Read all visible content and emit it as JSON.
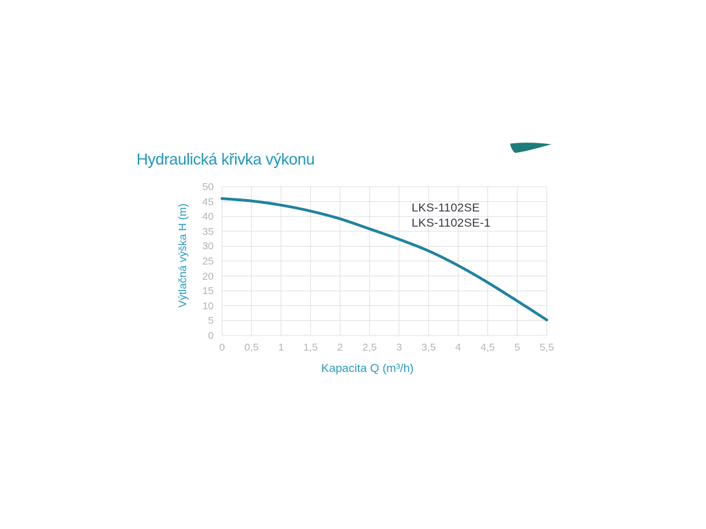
{
  "title": {
    "text": "Hydraulická křivka výkonu"
  },
  "logo": {
    "name": "logo-swoosh"
  },
  "legend": {
    "line1": "LKS-1102SE",
    "line2": "LKS-1102SE-1"
  },
  "axes": {
    "x_title": "Kapacita Q (m³/h)",
    "y_title": "Výtlačná výška H (m)"
  },
  "colors": {
    "background": "#ffffff",
    "title_blue": "#1e97c0",
    "axis_blue": "#2b9bc3",
    "tick_gray": "#b3b6b8",
    "legend_dark": "#35383e",
    "grid": "#e0e1e3",
    "curve": "#1e82a1",
    "swoosh": "#1d7b7b"
  },
  "chart_data": {
    "type": "line",
    "title": "Hydraulická křivka výkonu",
    "xlabel": "Kapacita Q (m³/h)",
    "ylabel": "Výtlačná výška H (m)",
    "xlim": [
      0,
      5.5
    ],
    "ylim": [
      0,
      50
    ],
    "grid": true,
    "legend_position": "inside-top-right",
    "x_ticks": [
      0,
      0.5,
      1,
      1.5,
      2,
      2.5,
      3,
      3.5,
      4,
      4.5,
      5,
      5.5
    ],
    "x_tick_labels": [
      "0",
      "0,5",
      "1",
      "1,5",
      "2",
      "2,5",
      "3",
      "3,5",
      "4",
      "4,5",
      "5",
      "5,5"
    ],
    "y_ticks": [
      0,
      5,
      10,
      15,
      20,
      25,
      30,
      35,
      40,
      45,
      50
    ],
    "y_tick_labels": [
      "0",
      "5",
      "10",
      "15",
      "20",
      "25",
      "30",
      "35",
      "40",
      "45",
      "50"
    ],
    "series": [
      {
        "name": "LKS-1102SE / LKS-1102SE-1",
        "x": [
          0,
          0.5,
          1,
          1.5,
          2,
          2.5,
          3,
          3.5,
          4,
          4.5,
          5,
          5.5
        ],
        "values": [
          46,
          45.2,
          43.8,
          41.8,
          39.2,
          35.8,
          32.3,
          28.4,
          23.5,
          17.8,
          11.6,
          5.2
        ]
      }
    ]
  }
}
